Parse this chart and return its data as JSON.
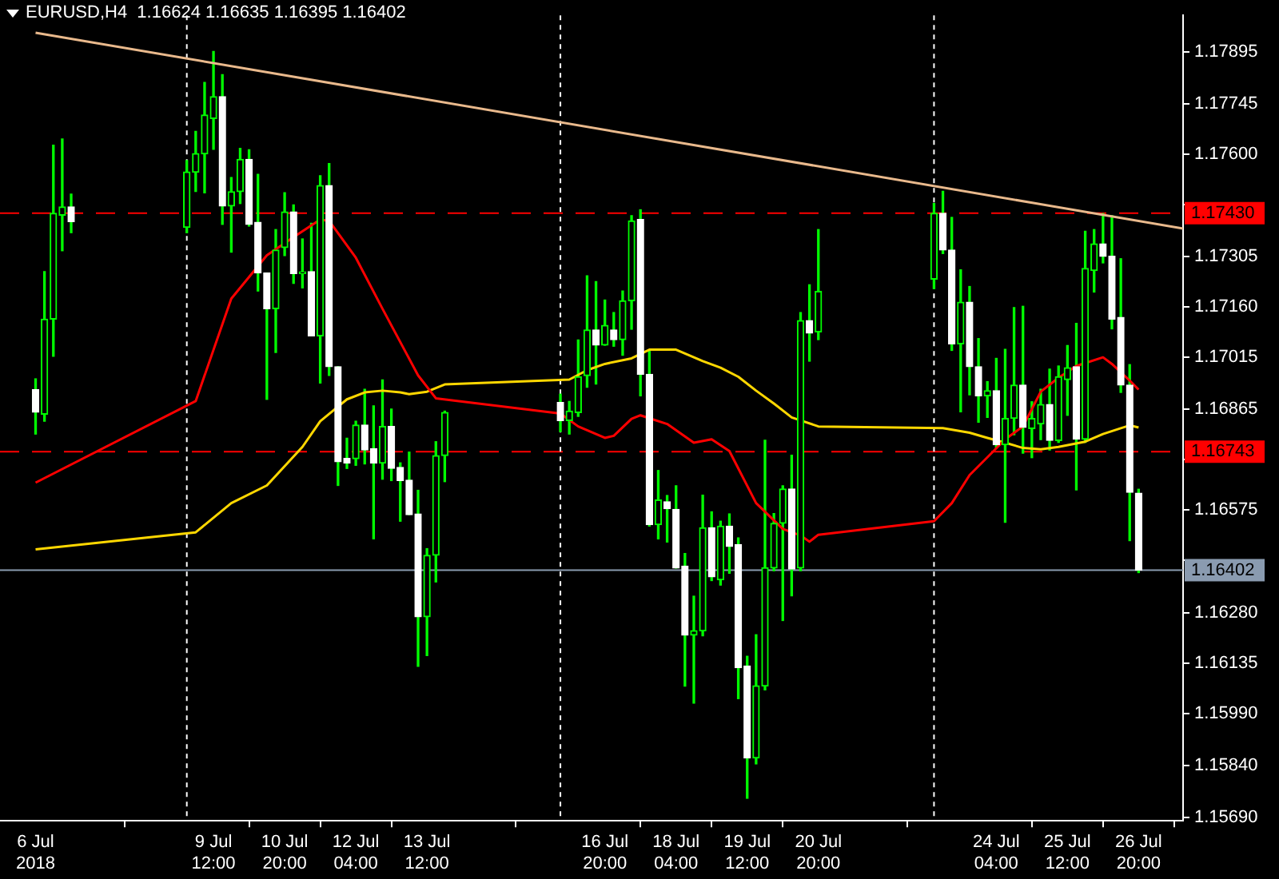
{
  "chart_data": {
    "type": "candlestick",
    "title": "EURUSD,H4  1.16624 1.16635 1.16395 1.16402",
    "colors": [
      "#ffffff",
      "#00ff00",
      "#00ff00",
      "#00ff00",
      "#ffffff",
      "#00ff00",
      "#00ff00",
      "#00ff00",
      "#00ff00",
      "#ffffff",
      "#00ff00",
      "#00ff00",
      "#ffffff",
      "#ffffff",
      "#ffffff",
      "#00ff00",
      "#00ff00",
      "#ffffff",
      "#00ff00",
      "#ffffff",
      "#00ff00",
      "#ffffff",
      "#ffffff",
      "#ffffff",
      "#00ff00",
      "#ffffff",
      "#ffffff",
      "#00ff00",
      "#ffffff",
      "#ffffff",
      "#ffffff",
      "#ffffff",
      "#00ff00",
      "#00ff00",
      "#00ff00",
      "#ffffff",
      "#00ff00",
      "#00ff00",
      "#00ff00",
      "#ffffff",
      "#00ff00",
      "#ffffff",
      "#00ff00",
      "#00ff00",
      "#ffffff",
      "#ffffff",
      "#00ff00",
      "#ffffff",
      "#ffffff",
      "#ffffff",
      "#00ff00",
      "#00ff00",
      "#ffffff",
      "#00ff00",
      "#ffffff",
      "#ffffff",
      "#ffffff",
      "#00ff00",
      "#00ff00",
      "#00ff00",
      "#00ff00",
      "#ffffff",
      "#00ff00",
      "#ffffff",
      "#00ff00",
      "#00ff00",
      "#ffffff",
      "#ffffff",
      "#00ff00",
      "#ffffff",
      "#ffffff",
      "#00ff00",
      "#ffffff",
      "#00ff00",
      "#00ff00",
      "#ffffff",
      "#00ff00",
      "#00ff00",
      "#ffffff",
      "#00ff00",
      "#00ff00",
      "#ffffff",
      "#00ff00",
      "#00ff00",
      "#ffffff",
      "#ffffff",
      "#ffffff",
      "#ffffff",
      "#ffffff"
    ],
    "x": [
      "2018-07-06T04:00",
      "2018-07-06T08:00",
      "2018-07-06T12:00",
      "2018-07-06T16:00",
      "2018-07-06T20:00",
      "2018-07-09T00:00",
      "2018-07-09T04:00",
      "2018-07-09T08:00",
      "2018-07-09T12:00",
      "2018-07-09T16:00",
      "2018-07-09T20:00",
      "2018-07-10T00:00",
      "2018-07-10T04:00",
      "2018-07-10T08:00",
      "2018-07-10T12:00",
      "2018-07-10T16:00",
      "2018-07-10T20:00",
      "2018-07-11T00:00",
      "2018-07-11T04:00",
      "2018-07-11T08:00",
      "2018-07-11T12:00",
      "2018-07-11T16:00",
      "2018-07-11T20:00",
      "2018-07-12T00:00",
      "2018-07-12T04:00",
      "2018-07-12T08:00",
      "2018-07-12T12:00",
      "2018-07-12T16:00",
      "2018-07-12T20:00",
      "2018-07-13T00:00",
      "2018-07-13T04:00",
      "2018-07-13T08:00",
      "2018-07-13T12:00",
      "2018-07-13T16:00",
      "2018-07-13T20:00",
      "2018-07-16T00:00",
      "2018-07-16T04:00",
      "2018-07-16T08:00",
      "2018-07-16T12:00",
      "2018-07-16T16:00",
      "2018-07-16T20:00",
      "2018-07-17T00:00",
      "2018-07-17T04:00",
      "2018-07-17T08:00",
      "2018-07-17T12:00",
      "2018-07-17T16:00",
      "2018-07-17T20:00",
      "2018-07-18T00:00",
      "2018-07-18T04:00",
      "2018-07-18T08:00",
      "2018-07-18T12:00",
      "2018-07-18T16:00",
      "2018-07-18T20:00",
      "2018-07-19T00:00",
      "2018-07-19T04:00",
      "2018-07-19T08:00",
      "2018-07-19T12:00",
      "2018-07-19T16:00",
      "2018-07-19T20:00",
      "2018-07-20T00:00",
      "2018-07-20T04:00",
      "2018-07-20T08:00",
      "2018-07-20T12:00",
      "2018-07-20T16:00",
      "2018-07-20T20:00",
      "2018-07-23T00:00",
      "2018-07-23T04:00",
      "2018-07-23T08:00",
      "2018-07-23T12:00",
      "2018-07-23T16:00",
      "2018-07-23T20:00",
      "2018-07-24T00:00",
      "2018-07-24T04:00",
      "2018-07-24T08:00",
      "2018-07-24T12:00",
      "2018-07-24T16:00",
      "2018-07-24T20:00",
      "2018-07-25T00:00",
      "2018-07-25T04:00",
      "2018-07-25T08:00",
      "2018-07-25T12:00",
      "2018-07-25T16:00",
      "2018-07-25T20:00",
      "2018-07-26T00:00",
      "2018-07-26T04:00",
      "2018-07-26T08:00",
      "2018-07-26T12:00",
      "2018-07-26T16:00",
      "2018-07-26T20:00"
    ],
    "ohlc": [
      [
        1.16922,
        1.16953,
        1.16794,
        1.16857
      ],
      [
        1.16851,
        1.17262,
        1.16831,
        1.17125
      ],
      [
        1.17125,
        1.17626,
        1.17018,
        1.1743
      ],
      [
        1.17424,
        1.17644,
        1.17322,
        1.17448
      ],
      [
        1.17448,
        1.17485,
        1.17374,
        1.17406
      ],
      [
        1.17389,
        1.17582,
        1.17374,
        1.17549
      ],
      [
        1.17548,
        1.17666,
        1.17493,
        1.17602
      ],
      [
        1.17601,
        1.17807,
        1.17489,
        1.17713
      ],
      [
        1.17703,
        1.17896,
        1.17614,
        1.17766
      ],
      [
        1.17766,
        1.17829,
        1.17398,
        1.17451
      ],
      [
        1.17451,
        1.17533,
        1.17318,
        1.17492
      ],
      [
        1.17492,
        1.17617,
        1.17458,
        1.17585
      ],
      [
        1.17585,
        1.17613,
        1.17393,
        1.17398
      ],
      [
        1.17404,
        1.17542,
        1.17206,
        1.17258
      ],
      [
        1.17258,
        1.17258,
        1.16894,
        1.17155
      ],
      [
        1.17155,
        1.17383,
        1.17029,
        1.17324
      ],
      [
        1.17331,
        1.17489,
        1.17308,
        1.17434
      ],
      [
        1.17434,
        1.17454,
        1.17228,
        1.17256
      ],
      [
        1.17256,
        1.17356,
        1.17215,
        1.17261
      ],
      [
        1.17262,
        1.17401,
        1.17077,
        1.17077
      ],
      [
        1.17077,
        1.17538,
        1.16941,
        1.1751
      ],
      [
        1.1751,
        1.17573,
        1.16963,
        1.16988
      ],
      [
        1.16988,
        1.16988,
        1.16646,
        1.16714
      ],
      [
        1.16724,
        1.16782,
        1.16695,
        1.1671
      ],
      [
        1.16723,
        1.16831,
        1.16704,
        1.1682
      ],
      [
        1.1682,
        1.16923,
        1.16708,
        1.16748
      ],
      [
        1.16752,
        1.16875,
        1.16492,
        1.1671
      ],
      [
        1.1671,
        1.1695,
        1.16664,
        1.16816
      ],
      [
        1.16816,
        1.16866,
        1.1666,
        1.16695
      ],
      [
        1.16698,
        1.16711,
        1.16543,
        1.1666
      ],
      [
        1.16661,
        1.16742,
        1.16562,
        1.16562
      ],
      [
        1.16564,
        1.16632,
        1.16125,
        1.16268
      ],
      [
        1.16268,
        1.16464,
        1.16156,
        1.16445
      ],
      [
        1.16445,
        1.16772,
        1.16368,
        1.16732
      ],
      [
        1.16732,
        1.1686,
        1.16657,
        1.16856
      ],
      [
        1.16885,
        1.16909,
        1.16801,
        1.16833
      ],
      [
        1.16833,
        1.16888,
        1.16794,
        1.1686
      ],
      [
        1.16856,
        1.17065,
        1.16845,
        1.16959
      ],
      [
        1.16962,
        1.1725,
        1.16929,
        1.17094
      ],
      [
        1.17094,
        1.17233,
        1.16938,
        1.1705
      ],
      [
        1.1705,
        1.1718,
        1.1705,
        1.17107
      ],
      [
        1.17094,
        1.17144,
        1.17047,
        1.17066
      ],
      [
        1.17066,
        1.17206,
        1.17021,
        1.17178
      ],
      [
        1.17178,
        1.17423,
        1.17096,
        1.17408
      ],
      [
        1.17412,
        1.1744,
        1.16904,
        1.16966
      ],
      [
        1.16966,
        1.17035,
        1.16529,
        1.16533
      ],
      [
        1.16533,
        1.16689,
        1.16492,
        1.16604
      ],
      [
        1.16599,
        1.16617,
        1.16483,
        1.16579
      ],
      [
        1.16577,
        1.16645,
        1.16408,
        1.16408
      ],
      [
        1.16414,
        1.1645,
        1.16068,
        1.16215
      ],
      [
        1.16215,
        1.16327,
        1.16019,
        1.16228
      ],
      [
        1.16227,
        1.16618,
        1.16213,
        1.16524
      ],
      [
        1.16524,
        1.1657,
        1.16372,
        1.16383
      ],
      [
        1.16374,
        1.16543,
        1.16359,
        1.16529
      ],
      [
        1.16529,
        1.16564,
        1.16393,
        1.1647
      ],
      [
        1.16476,
        1.16495,
        1.16032,
        1.16121
      ],
      [
        1.16126,
        1.16154,
        1.15745,
        1.15861
      ],
      [
        1.15861,
        1.16216,
        1.15844,
        1.16069
      ],
      [
        1.16068,
        1.16776,
        1.16057,
        1.16409
      ],
      [
        1.16408,
        1.16565,
        1.164,
        1.16537
      ],
      [
        1.16537,
        1.16645,
        1.16257,
        1.16636
      ],
      [
        1.16636,
        1.16733,
        1.16328,
        1.16405
      ],
      [
        1.16408,
        1.17144,
        1.164,
        1.17121
      ],
      [
        1.17121,
        1.17224,
        1.17004,
        1.17085
      ],
      [
        1.17088,
        1.17383,
        1.17066,
        1.17205
      ],
      [
        1.1724,
        1.17458,
        1.17213,
        1.1743
      ],
      [
        1.1743,
        1.17493,
        1.17314,
        1.17324
      ],
      [
        1.17324,
        1.17418,
        1.17035,
        1.17054
      ],
      [
        1.17054,
        1.17267,
        1.16858,
        1.17174
      ],
      [
        1.17174,
        1.17219,
        1.16907,
        1.16988
      ],
      [
        1.16988,
        1.17069,
        1.16828,
        1.16904
      ],
      [
        1.16904,
        1.16945,
        1.16842,
        1.16919
      ],
      [
        1.16919,
        1.17012,
        1.16755,
        1.16763
      ],
      [
        1.16763,
        1.17038,
        1.1654,
        1.16839
      ],
      [
        1.16839,
        1.17158,
        1.16792,
        1.16935
      ],
      [
        1.16935,
        1.17162,
        1.16739,
        1.16813
      ],
      [
        1.1681,
        1.16887,
        1.16726,
        1.16839
      ],
      [
        1.16823,
        1.16923,
        1.16778,
        1.16879
      ],
      [
        1.16879,
        1.16981,
        1.16748,
        1.16776
      ],
      [
        1.16775,
        1.1699,
        1.1677,
        1.16959
      ],
      [
        1.16951,
        1.17049,
        1.16848,
        1.16985
      ],
      [
        1.16988,
        1.17113,
        1.16633,
        1.16779
      ],
      [
        1.16779,
        1.17378,
        1.1677,
        1.17271
      ],
      [
        1.17265,
        1.17383,
        1.17203,
        1.17342
      ],
      [
        1.17342,
        1.17429,
        1.17287,
        1.17306
      ],
      [
        1.17306,
        1.17423,
        1.17097,
        1.17125
      ],
      [
        1.1713,
        1.17299,
        1.16914,
        1.16935
      ],
      [
        1.16935,
        1.16994,
        1.16487,
        1.16626
      ],
      [
        1.16624,
        1.16635,
        1.16395,
        1.16402
      ]
    ],
    "series": [
      {
        "type": "line",
        "color": "#ff0000",
        "x": [
          "2018-07-06T04:00",
          "2018-07-09T04:00",
          "2018-07-09T20:00",
          "2018-07-10T12:00",
          "2018-07-11T00:00",
          "2018-07-11T12:00",
          "2018-07-11T16:00",
          "2018-07-12T04:00",
          "2018-07-12T16:00",
          "2018-07-13T08:00",
          "2018-07-13T16:00",
          "2018-07-16T00:00",
          "2018-07-16T08:00",
          "2018-07-16T20:00",
          "2018-07-17T00:00",
          "2018-07-17T08:00",
          "2018-07-17T12:00",
          "2018-07-18T00:00",
          "2018-07-18T12:00",
          "2018-07-18T20:00",
          "2018-07-19T04:00",
          "2018-07-19T16:00",
          "2018-07-20T04:00",
          "2018-07-20T12:00",
          "2018-07-20T16:00",
          "2018-07-20T20:00",
          "2018-07-23T00:00",
          "2018-07-23T08:00",
          "2018-07-23T16:00",
          "2018-07-24T00:00",
          "2018-07-24T08:00",
          "2018-07-24T16:00",
          "2018-07-25T00:00",
          "2018-07-25T08:00",
          "2018-07-25T16:00",
          "2018-07-26T04:00",
          "2018-07-26T08:00",
          "2018-07-26T16:00",
          "2018-07-26T20:00"
        ],
        "values": [
          1.16654,
          1.16889,
          1.17184,
          1.17309,
          1.17361,
          1.17412,
          1.17408,
          1.17302,
          1.17155,
          1.16963,
          1.16897,
          1.16853,
          1.16816,
          1.16783,
          1.16789,
          1.16838,
          1.16848,
          1.16823,
          1.16769,
          1.16779,
          1.16745,
          1.16595,
          1.16521,
          1.16502,
          1.16484,
          1.16504,
          1.16543,
          1.16595,
          1.16676,
          1.16727,
          1.16779,
          1.16816,
          1.16916,
          1.16956,
          1.1699,
          1.17015,
          1.16996,
          1.16948,
          1.16922
        ]
      },
      {
        "type": "line",
        "color": "#ffd700",
        "x": [
          "2018-07-06T04:00",
          "2018-07-09T04:00",
          "2018-07-09T20:00",
          "2018-07-10T12:00",
          "2018-07-11T04:00",
          "2018-07-11T12:00",
          "2018-07-12T00:00",
          "2018-07-12T08:00",
          "2018-07-12T16:00",
          "2018-07-13T00:00",
          "2018-07-13T04:00",
          "2018-07-13T12:00",
          "2018-07-13T20:00",
          "2018-07-16T04:00",
          "2018-07-16T12:00",
          "2018-07-16T20:00",
          "2018-07-17T08:00",
          "2018-07-17T16:00",
          "2018-07-18T04:00",
          "2018-07-18T16:00",
          "2018-07-19T00:00",
          "2018-07-19T08:00",
          "2018-07-19T16:00",
          "2018-07-20T00:00",
          "2018-07-20T08:00",
          "2018-07-20T20:00",
          "2018-07-23T04:00",
          "2018-07-23T16:00",
          "2018-07-24T00:00",
          "2018-07-24T08:00",
          "2018-07-24T16:00",
          "2018-07-25T00:00",
          "2018-07-25T08:00",
          "2018-07-25T20:00",
          "2018-07-26T04:00",
          "2018-07-26T12:00",
          "2018-07-26T16:00",
          "2018-07-26T20:00"
        ],
        "values": [
          1.16462,
          1.16511,
          1.16595,
          1.16646,
          1.16757,
          1.16831,
          1.16894,
          1.16914,
          1.16919,
          1.16914,
          1.16909,
          1.16916,
          1.16937,
          1.16951,
          1.16978,
          1.16996,
          1.17012,
          1.17037,
          1.17037,
          1.17004,
          1.16985,
          1.16959,
          1.16919,
          1.16882,
          1.16842,
          1.16816,
          1.16811,
          1.16798,
          1.16783,
          1.16769,
          1.16754,
          1.1675,
          1.16757,
          1.16772,
          1.16794,
          1.16811,
          1.16819,
          1.16813
        ]
      },
      {
        "type": "line",
        "color": "#e9b98c",
        "x": [
          "2018-07-06T04:00",
          "2018-07-27T16:00"
        ],
        "values": [
          1.1795,
          1.17386
        ]
      }
    ],
    "xlim": [
      "2018-07-05T12:00",
      "2018-07-27T16:00"
    ],
    "ylim": [
      1.1568,
      1.18
    ],
    "yticks": [
      {
        "value": 1.1569,
        "label": "1.15690"
      },
      {
        "value": 1.1584,
        "label": "1.15840"
      },
      {
        "value": 1.1599,
        "label": "1.15990"
      },
      1.16135,
      {
        "value": 1.1628,
        "label": "1.16280"
      },
      {
        "value": 1.1643,
        "label": null
      },
      1.16575,
      {
        "value": 1.1672,
        "label": null
      },
      1.16865,
      1.17015,
      {
        "value": 1.1716,
        "label": "1.17160"
      },
      1.17305,
      {
        "value": 1.17455,
        "label": null
      },
      {
        "value": 1.176,
        "label": "1.17600"
      },
      1.17745,
      1.17895
    ],
    "xticks": [
      {
        "value": "2018-07-06T04:00",
        "label": "6 Jul 2018"
      },
      {
        "value": "2018-07-09T12:00",
        "label": "9 Jul 12:00"
      },
      {
        "value": "2018-07-10T20:00",
        "label": "10 Jul 20:00"
      },
      {
        "value": "2018-07-12T04:00",
        "label": "12 Jul 04:00"
      },
      {
        "value": "2018-07-13T12:00",
        "label": "13 Jul 12:00"
      },
      {
        "value": "2018-07-16T20:00",
        "label": "16 Jul 20:00"
      },
      {
        "value": "2018-07-18T04:00",
        "label": "18 Jul 04:00"
      },
      {
        "value": "2018-07-19T12:00",
        "label": "19 Jul 12:00"
      },
      {
        "value": "2018-07-20T20:00",
        "label": "20 Jul 20:00"
      },
      {
        "value": "2018-07-24T04:00",
        "label": "24 Jul 04:00"
      },
      {
        "value": "2018-07-25T12:00",
        "label": "25 Jul 12:00"
      },
      {
        "value": "2018-07-26T20:00",
        "label": "26 Jul 20:00"
      }
    ],
    "ref_lines": [
      {
        "axis": "y",
        "value": 1.1743,
        "label": "1.17430",
        "color": "#ff0000",
        "line_style": "dashed"
      },
      {
        "axis": "y",
        "value": 1.16743,
        "label": "1.16743",
        "color": "#ff0000",
        "line_style": "dashed"
      },
      {
        "axis": "y",
        "value": 1.16402,
        "label": "1.16402",
        "color": "#8a9bb0",
        "line_style": "solid"
      },
      {
        "axis": "x",
        "value": "2018-07-09T00:00",
        "color": "#ffffff",
        "line_style": "dotted"
      },
      {
        "axis": "x",
        "value": "2018-07-16T00:00",
        "color": "#ffffff",
        "line_style": "dotted"
      },
      {
        "axis": "x",
        "value": "2018-07-23T00:00",
        "color": "#ffffff",
        "line_style": "dotted"
      }
    ]
  }
}
